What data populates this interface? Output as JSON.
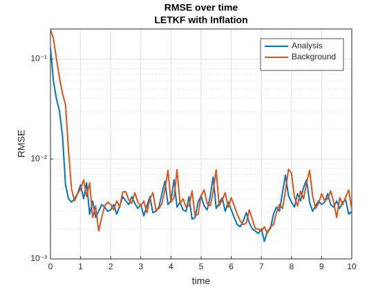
{
  "chart_data": {
    "type": "line",
    "title": "RMSE over time",
    "subtitle": "LETKF with Inflation",
    "x_label": "time",
    "y_label": "RMSE",
    "x": [
      0,
      0.1,
      0.2,
      0.3,
      0.4,
      0.5,
      0.6,
      0.7,
      0.8,
      0.9,
      1,
      1.1,
      1.2,
      1.3,
      1.4,
      1.5,
      1.6,
      1.7,
      1.8,
      1.9,
      2,
      2.1,
      2.2,
      2.3,
      2.4,
      2.5,
      2.6,
      2.7,
      2.8,
      2.9,
      3,
      3.1,
      3.2,
      3.3,
      3.4,
      3.5,
      3.6,
      3.7,
      3.8,
      3.9,
      4,
      4.1,
      4.2,
      4.3,
      4.4,
      4.5,
      4.6,
      4.7,
      4.8,
      4.9,
      5,
      5.1,
      5.2,
      5.3,
      5.4,
      5.5,
      5.6,
      5.7,
      5.8,
      5.9,
      6,
      6.1,
      6.2,
      6.3,
      6.4,
      6.5,
      6.6,
      6.7,
      6.8,
      6.9,
      7,
      7.1,
      7.2,
      7.3,
      7.4,
      7.5,
      7.6,
      7.7,
      7.8,
      7.9,
      8,
      8.1,
      8.2,
      8.3,
      8.4,
      8.5,
      8.6,
      8.7,
      8.8,
      8.9,
      9,
      9.1,
      9.2,
      9.3,
      9.4,
      9.5,
      9.6,
      9.7,
      9.8,
      9.9,
      10
    ],
    "series": [
      {
        "name": "Analysis",
        "color": "#0072BD",
        "values": [
          0.13,
          0.06,
          0.04,
          0.03,
          0.017,
          0.0055,
          0.004,
          0.0037,
          0.004,
          0.0045,
          0.0055,
          0.004,
          0.0058,
          0.0028,
          0.0038,
          0.0026,
          0.003,
          0.0035,
          0.0033,
          0.003,
          0.0031,
          0.0035,
          0.0028,
          0.0034,
          0.0042,
          0.0038,
          0.0035,
          0.0042,
          0.0036,
          0.0032,
          0.0035,
          0.0027,
          0.0034,
          0.0042,
          0.0029,
          0.003,
          0.0033,
          0.0045,
          0.006,
          0.0035,
          0.0038,
          0.0062,
          0.0033,
          0.0037,
          0.0031,
          0.003,
          0.0042,
          0.0025,
          0.0026,
          0.0037,
          0.0043,
          0.0034,
          0.0031,
          0.0042,
          0.0066,
          0.0032,
          0.0036,
          0.0041,
          0.003,
          0.0037,
          0.0031,
          0.0026,
          0.0022,
          0.0021,
          0.0024,
          0.0029,
          0.0023,
          0.002,
          0.0019,
          0.0018,
          0.002,
          0.0015,
          0.0019,
          0.002,
          0.0028,
          0.0033,
          0.003,
          0.0046,
          0.0069,
          0.0043,
          0.0037,
          0.0033,
          0.0045,
          0.0038,
          0.0052,
          0.0062,
          0.0037,
          0.003,
          0.0034,
          0.0038,
          0.0035,
          0.0037,
          0.0045,
          0.0035,
          0.0033,
          0.0038,
          0.0032,
          0.0037,
          0.0039,
          0.0028,
          0.003
        ]
      },
      {
        "name": "Background",
        "color": "#D95319",
        "values": [
          0.2,
          0.16,
          0.1,
          0.065,
          0.045,
          0.035,
          0.012,
          0.005,
          0.0038,
          0.0045,
          0.005,
          0.0062,
          0.0042,
          0.0058,
          0.0026,
          0.0034,
          0.0019,
          0.0026,
          0.0034,
          0.0037,
          0.0035,
          0.0031,
          0.0038,
          0.0033,
          0.0047,
          0.0047,
          0.0039,
          0.0036,
          0.0046,
          0.0037,
          0.0034,
          0.0038,
          0.0029,
          0.004,
          0.0046,
          0.0031,
          0.0032,
          0.0036,
          0.005,
          0.0077,
          0.0037,
          0.0041,
          0.0078,
          0.0036,
          0.004,
          0.0033,
          0.0034,
          0.0048,
          0.0027,
          0.0028,
          0.0043,
          0.0049,
          0.0036,
          0.0034,
          0.0047,
          0.0078,
          0.0034,
          0.0039,
          0.0046,
          0.0033,
          0.0041,
          0.0034,
          0.0028,
          0.0024,
          0.0022,
          0.0023,
          0.0031,
          0.0025,
          0.002,
          0.002,
          0.0019,
          0.0021,
          0.0018,
          0.0021,
          0.0022,
          0.0029,
          0.0035,
          0.0032,
          0.0048,
          0.0079,
          0.0072,
          0.0041,
          0.0034,
          0.0048,
          0.004,
          0.0058,
          0.0077,
          0.0043,
          0.0032,
          0.0036,
          0.0045,
          0.0038,
          0.004,
          0.0048,
          0.0037,
          0.0026,
          0.0041,
          0.0035,
          0.0042,
          0.0049,
          0.0031
        ]
      }
    ],
    "xlim": [
      0,
      10
    ],
    "xticks": [
      0,
      1,
      2,
      3,
      4,
      5,
      6,
      7,
      8,
      9,
      10
    ],
    "ylim": [
      0.001,
      0.2
    ],
    "y_scale": "log",
    "yticks": [
      {
        "value": 0.001,
        "label": "10⁻³"
      },
      {
        "value": 0.01,
        "label": "10⁻²"
      },
      {
        "value": 0.1,
        "label": "10⁻¹"
      }
    ],
    "grid": true,
    "minor_grid": true,
    "legend": "northeast"
  }
}
